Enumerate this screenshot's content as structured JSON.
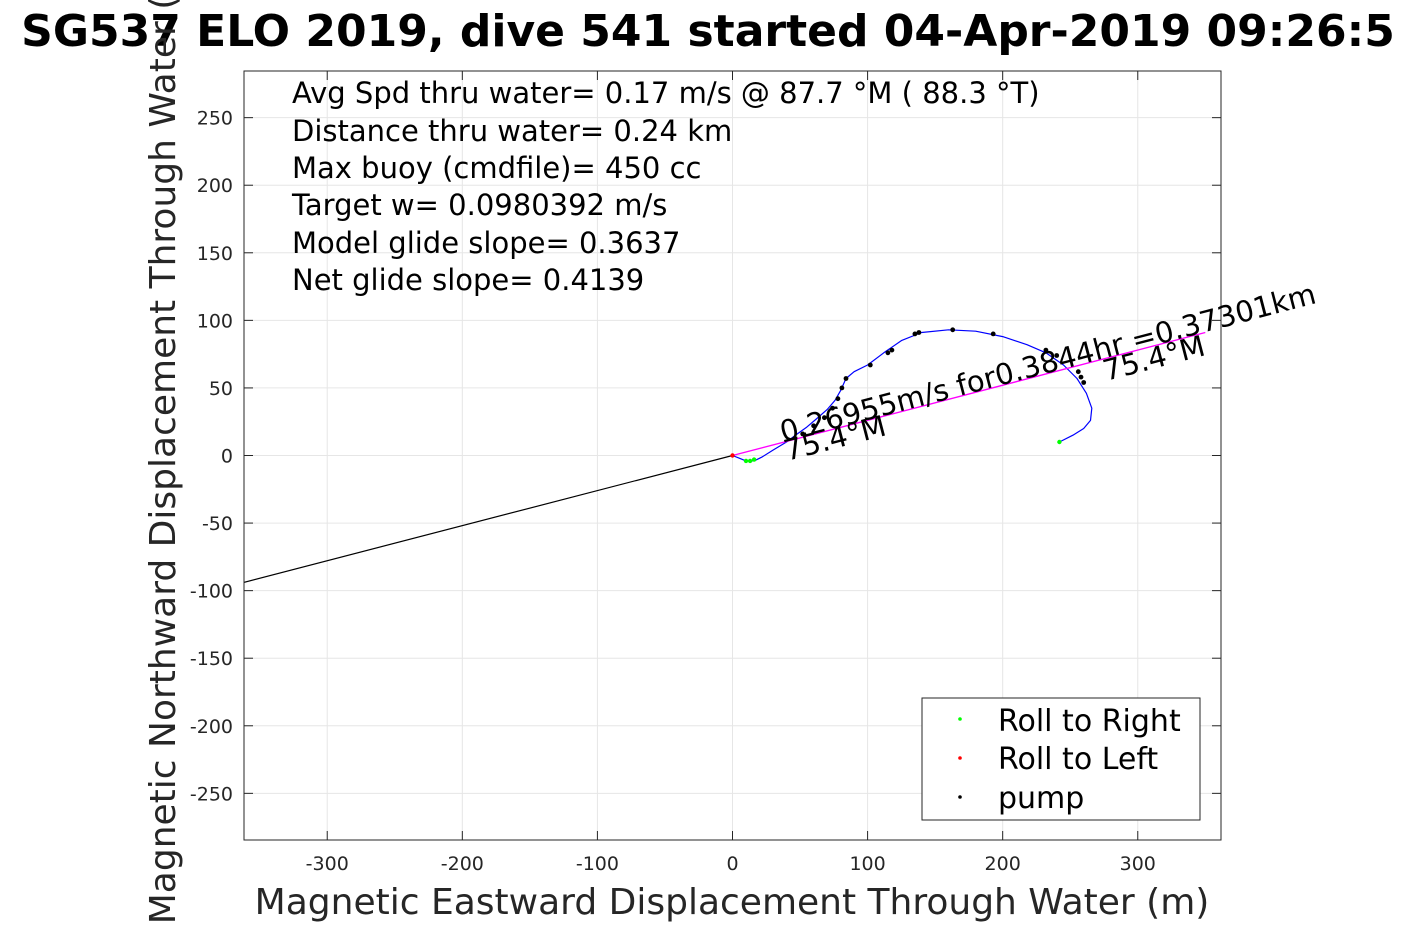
{
  "chart_data": {
    "type": "line",
    "title": "SG537 ELO 2019, dive 541 started 04-Apr-2019 09:26:5",
    "xlabel": "Magnetic Eastward Displacement Through Water (m)",
    "ylabel": "Magnetic Northward Displacement Through Water (",
    "xlim": [
      -362,
      362
    ],
    "ylim": [
      -285,
      285
    ],
    "xticks": [
      "-300",
      "-200",
      "-100",
      "0",
      "100",
      "200",
      "300"
    ],
    "yticks": [
      "250",
      "200",
      "150",
      "100",
      "50",
      "0",
      "-50",
      "-100",
      "-150",
      "-200",
      "-250"
    ],
    "grid": true,
    "legend_position": "bottom-right",
    "annotations": [
      "Avg Spd thru water=  0.17 m/s @  87.7 °M ( 88.3 °T)",
      "Distance thru water=  0.24 km",
      "Max buoy (cmdfile)= 450 cc",
      "Target w= 0.0980392 m/s",
      "Model glide slope= 0.3637",
      "Net glide slope= 0.4139"
    ],
    "vector_label": "0.26955m/s for0.3844hr =0.37301km",
    "heading_labels": [
      {
        "text": "75.4°M",
        "x": 43,
        "y": -5
      },
      {
        "text": "75.4°M",
        "x": 275,
        "y": 60
      }
    ],
    "series": [
      {
        "name": "Roll to Right",
        "kind": "marker",
        "color": "#00ff00",
        "x": [
          10,
          13,
          16,
          242
        ],
        "y": [
          -4,
          -4,
          -3,
          10
        ]
      },
      {
        "name": "Roll to Left",
        "kind": "marker",
        "color": "#ff0000",
        "x": [
          0
        ],
        "y": [
          0
        ]
      },
      {
        "name": "pump",
        "kind": "marker",
        "color": "#000000",
        "x": [
          52,
          60,
          68,
          74,
          78,
          81,
          84,
          102,
          115,
          118,
          135,
          138,
          163,
          193,
          232,
          240,
          256,
          258,
          260
        ],
        "y": [
          16,
          22,
          28,
          35,
          42,
          50,
          57,
          67,
          76,
          78,
          90,
          91,
          93,
          90,
          78,
          74,
          62,
          58,
          54
        ]
      }
    ],
    "lines": [
      {
        "kind": "track",
        "color": "#0000ff",
        "x": [
          0,
          5,
          10,
          16,
          22,
          30,
          40,
          48,
          55,
          62,
          70,
          76,
          80,
          84,
          90,
          100,
          112,
          125,
          140,
          160,
          180,
          200,
          218,
          232,
          245,
          255,
          262,
          266,
          265,
          260,
          252,
          242
        ],
        "y": [
          0,
          -2,
          -4,
          -4,
          -1,
          4,
          10,
          16,
          21,
          27,
          34,
          41,
          48,
          57,
          62,
          67,
          76,
          85,
          91,
          93,
          92,
          88,
          82,
          76,
          67,
          57,
          46,
          35,
          26,
          20,
          15,
          10
        ]
      },
      {
        "kind": "drift",
        "color": "#000000",
        "x": [
          0,
          -362
        ],
        "y": [
          0,
          -94
        ]
      },
      {
        "kind": "vector",
        "color": "#ff00ff",
        "x": [
          0,
          350
        ],
        "y": [
          0,
          91
        ]
      }
    ]
  }
}
